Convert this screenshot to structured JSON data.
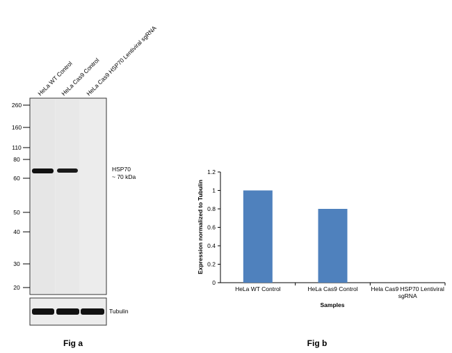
{
  "fig_a": {
    "caption": "Fig a",
    "lane_labels": [
      "HeLa WT Control",
      "HeLa Cas9 Control",
      "HeLa Cas9 HSP70  Lentiviral sgRNA"
    ],
    "markers": [
      "260",
      "160",
      "110",
      "80",
      "60",
      "50",
      "40",
      "30",
      "20"
    ],
    "band_label_line1": "HSP70",
    "band_label_line2": "~ 70 kDa",
    "loading_label": "Tubulin",
    "hsp70_band_present": [
      true,
      true,
      false
    ],
    "tubulin_band_present": [
      true,
      true,
      true
    ]
  },
  "fig_b": {
    "caption": "Fig b"
  },
  "colors": {
    "bar": "#4f81bd",
    "blot_background": "#ececec",
    "band": "#111111"
  },
  "chart_data": {
    "type": "bar",
    "categories": [
      "HeLa WT Control",
      "HeLa Cas9 Control",
      "Hela Cas9 HSP70 Lentiviral sgRNA"
    ],
    "values": [
      1.0,
      0.8,
      0.0
    ],
    "title": "",
    "xlabel": "Samples",
    "ylabel": "Expression  normalized to Tubulin",
    "ylim": [
      0,
      1.2
    ],
    "yticks": [
      "0",
      "0.2",
      "0.4",
      "0.6",
      "0.8",
      "1",
      "1.2"
    ],
    "grid": false,
    "legend": "none"
  }
}
